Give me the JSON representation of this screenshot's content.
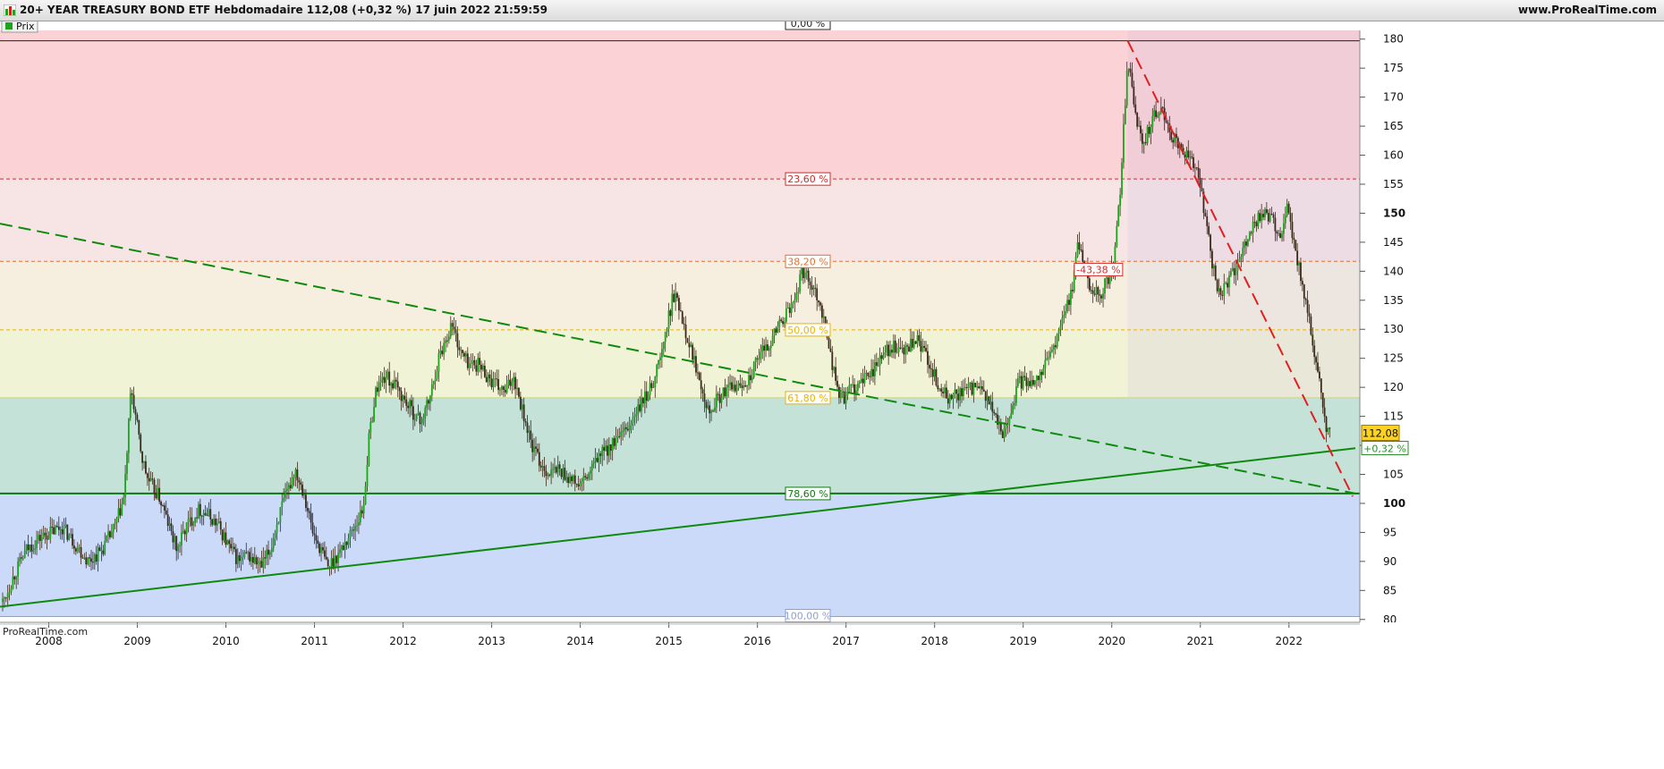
{
  "header": {
    "title": "20+ YEAR TREASURY BOND ETF Hebdomadaire 112,08 (+0,32 %) 17 juin 2022 21:59:59",
    "site": "www.ProRealTime.com"
  },
  "indicator_label": "Prix",
  "watermark": "ProRealTime.com",
  "price_badge": {
    "value": "112,08",
    "change": "+0,32 %"
  },
  "colors": {
    "up_candle": "#1aa51a",
    "down_candle": "#3a2a1a",
    "trend_line": "#0e8a0e",
    "red_dashed": "#e02020",
    "zone_red": "#fbd2d6",
    "zone_pink": "#f7e4e4",
    "zone_cream": "#f6efdf",
    "zone_yellow": "#f1f3d6",
    "zone_teal": "#c5e2d9",
    "zone_blue": "#cbdaf9"
  },
  "chart_data": {
    "type": "candlestick",
    "title": "20+ YEAR TREASURY BOND ETF Hebdomadaire",
    "xlabel": "",
    "ylabel": "",
    "x_ticks": [
      "2008",
      "2009",
      "2010",
      "2011",
      "2012",
      "2013",
      "2014",
      "2015",
      "2016",
      "2017",
      "2018",
      "2019",
      "2020",
      "2021",
      "2022"
    ],
    "y_ticks": [
      80,
      85,
      90,
      95,
      100,
      105,
      110,
      115,
      120,
      125,
      130,
      135,
      140,
      145,
      150,
      155,
      160,
      165,
      170,
      175,
      180
    ],
    "ylim": [
      79.5,
      181.5
    ],
    "xlim": [
      2007.45,
      2022.8
    ],
    "last_price": 112.08,
    "last_change": "+0,32 %",
    "date": "17 juin 2022 21:59:59",
    "series": [
      {
        "type": "close",
        "points": [
          [
            2007.48,
            83
          ],
          [
            2007.62,
            88
          ],
          [
            2007.75,
            92
          ],
          [
            2007.9,
            94
          ],
          [
            2008.02,
            95
          ],
          [
            2008.15,
            96
          ],
          [
            2008.3,
            93
          ],
          [
            2008.45,
            90
          ],
          [
            2008.6,
            92
          ],
          [
            2008.75,
            96
          ],
          [
            2008.85,
            101
          ],
          [
            2008.93,
            120
          ],
          [
            2008.98,
            115
          ],
          [
            2009.05,
            108
          ],
          [
            2009.12,
            104
          ],
          [
            2009.25,
            101
          ],
          [
            2009.38,
            95
          ],
          [
            2009.45,
            92
          ],
          [
            2009.55,
            96
          ],
          [
            2009.7,
            99
          ],
          [
            2009.8,
            98
          ],
          [
            2009.92,
            96
          ],
          [
            2010.05,
            92
          ],
          [
            2010.15,
            90
          ],
          [
            2010.25,
            91
          ],
          [
            2010.4,
            89
          ],
          [
            2010.5,
            92
          ],
          [
            2010.6,
            98
          ],
          [
            2010.7,
            102
          ],
          [
            2010.78,
            106
          ],
          [
            2010.88,
            102
          ],
          [
            2010.98,
            95
          ],
          [
            2011.1,
            91
          ],
          [
            2011.15,
            89
          ],
          [
            2011.3,
            92
          ],
          [
            2011.45,
            96
          ],
          [
            2011.55,
            99
          ],
          [
            2011.62,
            112
          ],
          [
            2011.7,
            120
          ],
          [
            2011.8,
            122
          ],
          [
            2011.92,
            120
          ],
          [
            2012.05,
            117
          ],
          [
            2012.2,
            114
          ],
          [
            2012.3,
            118
          ],
          [
            2012.4,
            125
          ],
          [
            2012.55,
            131
          ],
          [
            2012.65,
            126
          ],
          [
            2012.75,
            124
          ],
          [
            2012.85,
            124
          ],
          [
            2013.0,
            121
          ],
          [
            2013.15,
            119
          ],
          [
            2013.25,
            122
          ],
          [
            2013.35,
            116
          ],
          [
            2013.45,
            110
          ],
          [
            2013.55,
            107
          ],
          [
            2013.65,
            105
          ],
          [
            2013.75,
            106
          ],
          [
            2013.9,
            104
          ],
          [
            2014.0,
            103
          ],
          [
            2014.1,
            105
          ],
          [
            2014.2,
            108
          ],
          [
            2014.35,
            110
          ],
          [
            2014.5,
            112
          ],
          [
            2014.65,
            116
          ],
          [
            2014.8,
            120
          ],
          [
            2014.92,
            126
          ],
          [
            2015.05,
            136
          ],
          [
            2015.12,
            134
          ],
          [
            2015.22,
            128
          ],
          [
            2015.3,
            124
          ],
          [
            2015.38,
            120
          ],
          [
            2015.45,
            116
          ],
          [
            2015.55,
            118
          ],
          [
            2015.7,
            120
          ],
          [
            2015.8,
            120
          ],
          [
            2015.92,
            122
          ],
          [
            2016.05,
            126
          ],
          [
            2016.15,
            128
          ],
          [
            2016.25,
            131
          ],
          [
            2016.4,
            134
          ],
          [
            2016.5,
            140
          ],
          [
            2016.58,
            139
          ],
          [
            2016.7,
            135
          ],
          [
            2016.8,
            128
          ],
          [
            2016.88,
            121
          ],
          [
            2016.95,
            118
          ],
          [
            2017.08,
            120
          ],
          [
            2017.2,
            121
          ],
          [
            2017.35,
            124
          ],
          [
            2017.5,
            127
          ],
          [
            2017.65,
            126
          ],
          [
            2017.8,
            128
          ],
          [
            2017.92,
            125
          ],
          [
            2018.05,
            120
          ],
          [
            2018.15,
            118
          ],
          [
            2018.3,
            119
          ],
          [
            2018.45,
            120
          ],
          [
            2018.6,
            118
          ],
          [
            2018.75,
            112
          ],
          [
            2018.85,
            115
          ],
          [
            2018.95,
            121
          ],
          [
            2019.1,
            121
          ],
          [
            2019.25,
            124
          ],
          [
            2019.4,
            129
          ],
          [
            2019.55,
            137
          ],
          [
            2019.62,
            145
          ],
          [
            2019.68,
            142
          ],
          [
            2019.75,
            137
          ],
          [
            2019.88,
            136
          ],
          [
            2020.02,
            141
          ],
          [
            2020.1,
            155
          ],
          [
            2020.18,
            177
          ],
          [
            2020.25,
            168
          ],
          [
            2020.35,
            162
          ],
          [
            2020.45,
            166
          ],
          [
            2020.55,
            168
          ],
          [
            2020.65,
            164
          ],
          [
            2020.75,
            162
          ],
          [
            2020.85,
            160
          ],
          [
            2020.95,
            158
          ],
          [
            2021.05,
            150
          ],
          [
            2021.15,
            140
          ],
          [
            2021.2,
            136
          ],
          [
            2021.3,
            138
          ],
          [
            2021.4,
            140
          ],
          [
            2021.5,
            144
          ],
          [
            2021.58,
            148
          ],
          [
            2021.7,
            150
          ],
          [
            2021.8,
            149
          ],
          [
            2021.9,
            146
          ],
          [
            2021.98,
            151
          ],
          [
            2022.05,
            145
          ],
          [
            2022.15,
            138
          ],
          [
            2022.22,
            132
          ],
          [
            2022.28,
            126
          ],
          [
            2022.35,
            120
          ],
          [
            2022.4,
            115
          ],
          [
            2022.42,
            112
          ],
          [
            2022.46,
            112.08
          ]
        ]
      }
    ],
    "fib_levels": [
      {
        "label": "0,00 %",
        "price": 179.7
      },
      {
        "label": "23,60 %",
        "price": 155.9
      },
      {
        "label": "38,20 %",
        "price": 141.7
      },
      {
        "label": "50,00 %",
        "price": 129.9
      },
      {
        "label": "61,80 %",
        "price": 118.2
      },
      {
        "label": "78,60 %",
        "price": 101.7
      },
      {
        "label": "100,00 %",
        "price": 80.5
      }
    ],
    "trendlines": [
      {
        "name": "",
        "style": "dashed",
        "color": "green",
        "from": [
          2007.45,
          148.2
        ],
        "to": [
          2022.75,
          101.7
        ]
      },
      {
        "name": "",
        "style": "solid",
        "color": "green",
        "from": [
          2007.45,
          82.2
        ],
        "to": [
          2022.75,
          109.5
        ]
      },
      {
        "name": "",
        "style": "dashed",
        "color": "red",
        "from": [
          2020.18,
          179.7
        ],
        "to": [
          2022.72,
          101.2
        ]
      },
      {
        "name": "",
        "style": "solid",
        "color": "green",
        "from": [
          2007.45,
          101.7
        ],
        "to": [
          2022.75,
          101.7
        ]
      }
    ],
    "annotations": [
      {
        "text": "-43,38 %",
        "x": 2019.85,
        "price": 140.3
      }
    ],
    "grid": false,
    "legend": "none"
  }
}
